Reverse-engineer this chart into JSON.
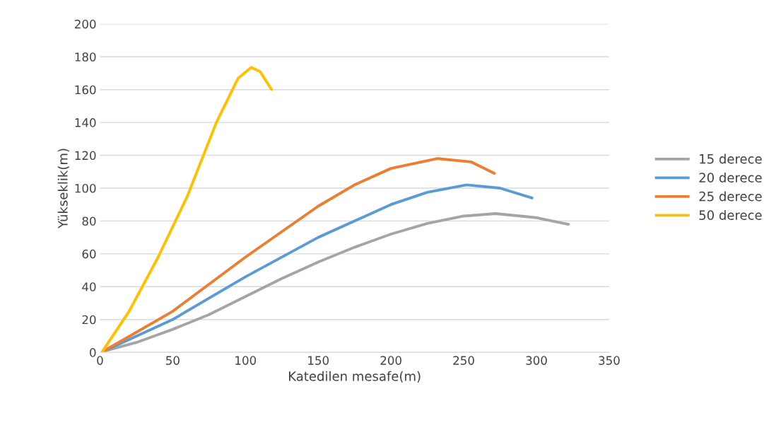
{
  "chart_data": {
    "type": "line",
    "xlabel": "Katedilen mesafe(m)",
    "ylabel": "Yükseklik(m)",
    "xlim": [
      0,
      350
    ],
    "xticks": [
      0,
      50,
      100,
      150,
      200,
      250,
      300,
      350
    ],
    "ylim": [
      0,
      200
    ],
    "yticks": [
      0,
      20,
      40,
      60,
      80,
      100,
      120,
      140,
      160,
      180,
      200
    ],
    "grid": "y",
    "legend": "right",
    "marker": "none",
    "line_style": "solid",
    "series": [
      {
        "name": "15 derece",
        "color": "#a5a5a5",
        "x": [
          2,
          25,
          50,
          75,
          100,
          125,
          150,
          175,
          200,
          225,
          250,
          272,
          300,
          322
        ],
        "values": [
          0.5,
          6,
          14,
          23,
          34,
          45,
          55,
          64,
          72,
          78.5,
          83,
          84.5,
          82,
          78
        ]
      },
      {
        "name": "20 derece",
        "color": "#5b9bd5",
        "x": [
          2,
          50,
          100,
          150,
          200,
          225,
          252,
          275,
          297
        ],
        "values": [
          0.5,
          20,
          46,
          70,
          90,
          97.5,
          102,
          100,
          94
        ]
      },
      {
        "name": "25 derece",
        "color": "#ed7d31",
        "x": [
          2,
          50,
          100,
          150,
          175,
          200,
          232,
          255,
          271
        ],
        "values": [
          0.5,
          25,
          58,
          89,
          102,
          112,
          118,
          116,
          109
        ]
      },
      {
        "name": "50 derece",
        "color": "#ffc000",
        "x": [
          2,
          20,
          40,
          60,
          80,
          95,
          104,
          110,
          118
        ],
        "values": [
          1,
          25,
          58,
          95,
          140,
          167,
          173.5,
          171,
          160
        ]
      }
    ]
  }
}
